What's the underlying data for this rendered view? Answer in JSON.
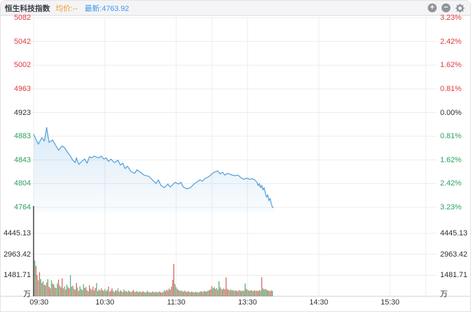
{
  "header": {
    "title": "恒生科技指数",
    "avg": "均价:--",
    "latest": "最新:4763.92"
  },
  "toolbar": {
    "zoom_in_label": "+",
    "zoom_out_label": "−",
    "icons": [
      "zoom-in-icon",
      "zoom-out-icon",
      "settings-gear-icon"
    ]
  },
  "chart_data": {
    "type": "line",
    "title": "恒生科技指数 intraday minute chart with volume",
    "prev_close": 4923,
    "latest": 4763.92,
    "price_axis_left": [
      "5082",
      "5042",
      "5002",
      "4963",
      "4923",
      "4883",
      "4843",
      "4804",
      "4764"
    ],
    "pct_axis_right": [
      "3.23%",
      "2.42%",
      "1.62%",
      "0.81%",
      "0.00%",
      "0.81%",
      "1.62%",
      "2.42%",
      "3.23%"
    ],
    "axis_row_tone": [
      "up",
      "up",
      "up",
      "up",
      "flat",
      "down",
      "down",
      "down",
      "down"
    ],
    "price_range": [
      4764,
      5082
    ],
    "pct_range": [
      -3.23,
      3.23
    ],
    "time_labels": [
      "09:30",
      "10:30",
      "11:30",
      "13:30",
      "14:30",
      "15:30"
    ],
    "session_minutes_total": 330,
    "volume_axis": [
      "4445.13",
      "2963.42",
      "1481.71"
    ],
    "volume_unit": "万",
    "grid": true,
    "legend": "none",
    "price_points": [
      [
        0,
        4887
      ],
      [
        2,
        4878
      ],
      [
        4,
        4870
      ],
      [
        7,
        4881
      ],
      [
        9,
        4875
      ],
      [
        11,
        4898
      ],
      [
        13,
        4873
      ],
      [
        16,
        4877
      ],
      [
        18,
        4870
      ],
      [
        21,
        4860
      ],
      [
        24,
        4867
      ],
      [
        26,
        4864
      ],
      [
        28,
        4858
      ],
      [
        31,
        4850
      ],
      [
        33,
        4843
      ],
      [
        35,
        4839
      ],
      [
        36,
        4847
      ],
      [
        38,
        4836
      ],
      [
        41,
        4842
      ],
      [
        43,
        4845
      ],
      [
        45,
        4838
      ],
      [
        47,
        4849
      ],
      [
        49,
        4847
      ],
      [
        51,
        4850
      ],
      [
        53,
        4848
      ],
      [
        55,
        4847
      ],
      [
        57,
        4850
      ],
      [
        59,
        4845
      ],
      [
        61,
        4847
      ],
      [
        63,
        4841
      ],
      [
        65,
        4845
      ],
      [
        68,
        4839
      ],
      [
        71,
        4843
      ],
      [
        73,
        4835
      ],
      [
        75,
        4838
      ],
      [
        77,
        4829
      ],
      [
        79,
        4833
      ],
      [
        82,
        4824
      ],
      [
        85,
        4821
      ],
      [
        87,
        4827
      ],
      [
        89,
        4824
      ],
      [
        91,
        4821
      ],
      [
        93,
        4818
      ],
      [
        97,
        4816
      ],
      [
        100,
        4810
      ],
      [
        103,
        4804
      ],
      [
        105,
        4810
      ],
      [
        107,
        4801
      ],
      [
        110,
        4797
      ],
      [
        113,
        4803
      ],
      [
        115,
        4798
      ],
      [
        119,
        4806
      ],
      [
        122,
        4803
      ],
      [
        124,
        4806
      ],
      [
        126,
        4798
      ],
      [
        129,
        4795
      ],
      [
        132,
        4797
      ],
      [
        135,
        4803
      ],
      [
        137,
        4806
      ],
      [
        140,
        4810
      ],
      [
        142,
        4808
      ],
      [
        144,
        4812
      ],
      [
        147,
        4815
      ],
      [
        149,
        4818
      ],
      [
        150,
        4820
      ],
      [
        152,
        4823
      ],
      [
        155,
        4825
      ],
      [
        157,
        4820
      ],
      [
        159,
        4823
      ],
      [
        161,
        4818
      ],
      [
        163,
        4821
      ],
      [
        166,
        4819
      ],
      [
        169,
        4817
      ],
      [
        172,
        4818
      ],
      [
        175,
        4813
      ],
      [
        177,
        4811
      ],
      [
        179,
        4813
      ],
      [
        182,
        4811
      ],
      [
        184,
        4812
      ],
      [
        186,
        4810
      ],
      [
        188,
        4806
      ],
      [
        189,
        4800
      ],
      [
        190,
        4804
      ],
      [
        191,
        4797
      ],
      [
        192,
        4801
      ],
      [
        193,
        4793
      ],
      [
        194,
        4797
      ],
      [
        195,
        4788
      ],
      [
        196,
        4781
      ],
      [
        197,
        4785
      ],
      [
        198,
        4775
      ],
      [
        199,
        4779
      ],
      [
        200,
        4770
      ],
      [
        201,
        4764
      ],
      [
        202,
        4763.92
      ]
    ],
    "volume_values": [
      2900,
      2520,
      2150,
      1510,
      1130,
      1690,
      1210,
      940,
      1060,
      820,
      760,
      980,
      1210,
      680,
      560,
      1130,
      900,
      840,
      620,
      580,
      900,
      1180,
      760,
      640,
      1270,
      560,
      700,
      480,
      820,
      640,
      560,
      1490,
      680,
      740,
      520,
      460,
      940,
      620,
      380,
      700,
      520,
      440,
      860,
      580,
      660,
      420,
      360,
      780,
      540,
      460,
      680,
      420,
      580,
      940,
      360,
      480,
      400,
      560,
      440,
      380,
      520,
      360,
      440,
      680,
      320,
      400,
      560,
      380,
      300,
      440,
      380,
      560,
      320,
      420,
      360,
      300,
      480,
      340,
      380,
      320,
      400,
      340,
      280,
      360,
      440,
      300,
      320,
      380,
      280,
      340,
      320,
      280,
      360,
      300,
      260,
      320,
      380,
      280,
      300,
      260,
      340,
      300,
      280,
      320,
      260,
      300,
      340,
      280,
      260,
      300,
      420,
      360,
      480,
      400,
      540,
      460,
      680,
      1160,
      2280,
      860,
      640,
      520,
      440,
      380,
      420,
      360,
      320,
      400,
      340,
      300,
      360,
      320,
      280,
      340,
      300,
      260,
      320,
      280,
      300,
      260,
      320,
      360,
      300,
      340,
      380,
      320,
      360,
      400,
      440,
      480,
      720,
      560,
      640,
      520,
      580,
      460,
      1060,
      640,
      520,
      480,
      560,
      480,
      1340,
      520,
      460,
      420,
      480,
      400,
      440,
      380,
      420,
      380,
      360,
      440,
      400,
      360,
      420,
      380,
      900,
      520,
      460,
      420,
      380,
      440,
      400,
      360,
      420,
      380,
      400,
      360,
      440,
      400,
      1350,
      560,
      480,
      520,
      460,
      420,
      400,
      360,
      420,
      380
    ],
    "volume_colors": "rgrrgrgrgrgrgrrgrgrggrgrrggrgrrggrgrrgrggrgrgrgrrgrgrggrgrgrgrgrgrrgrgrgrgrgrggrgrgrrgrgrgrgrgrggrgrgrgrgrgrrgrgrgrgrrrggrgrgrgrgrrgrgrgrggrgrgrgrgrgrrggrgrgrgrgrrrgrgrgrgrgrgrgrgrggrgrgrgrgrgrgggrgrgrgrg",
    "colors": {
      "up": "#e0393e",
      "down": "#2ba15d",
      "flat": "#2e2e2e",
      "line": "#58a3dc",
      "fill_top": "rgba(88,163,220,0.22)",
      "fill_bottom": "rgba(88,163,220,0.03)",
      "vol_up": "#cc4f47",
      "vol_down": "#3da05f",
      "grid": "#ececec",
      "axis_line": "#cfcfcf",
      "time_label": "#333333"
    }
  }
}
